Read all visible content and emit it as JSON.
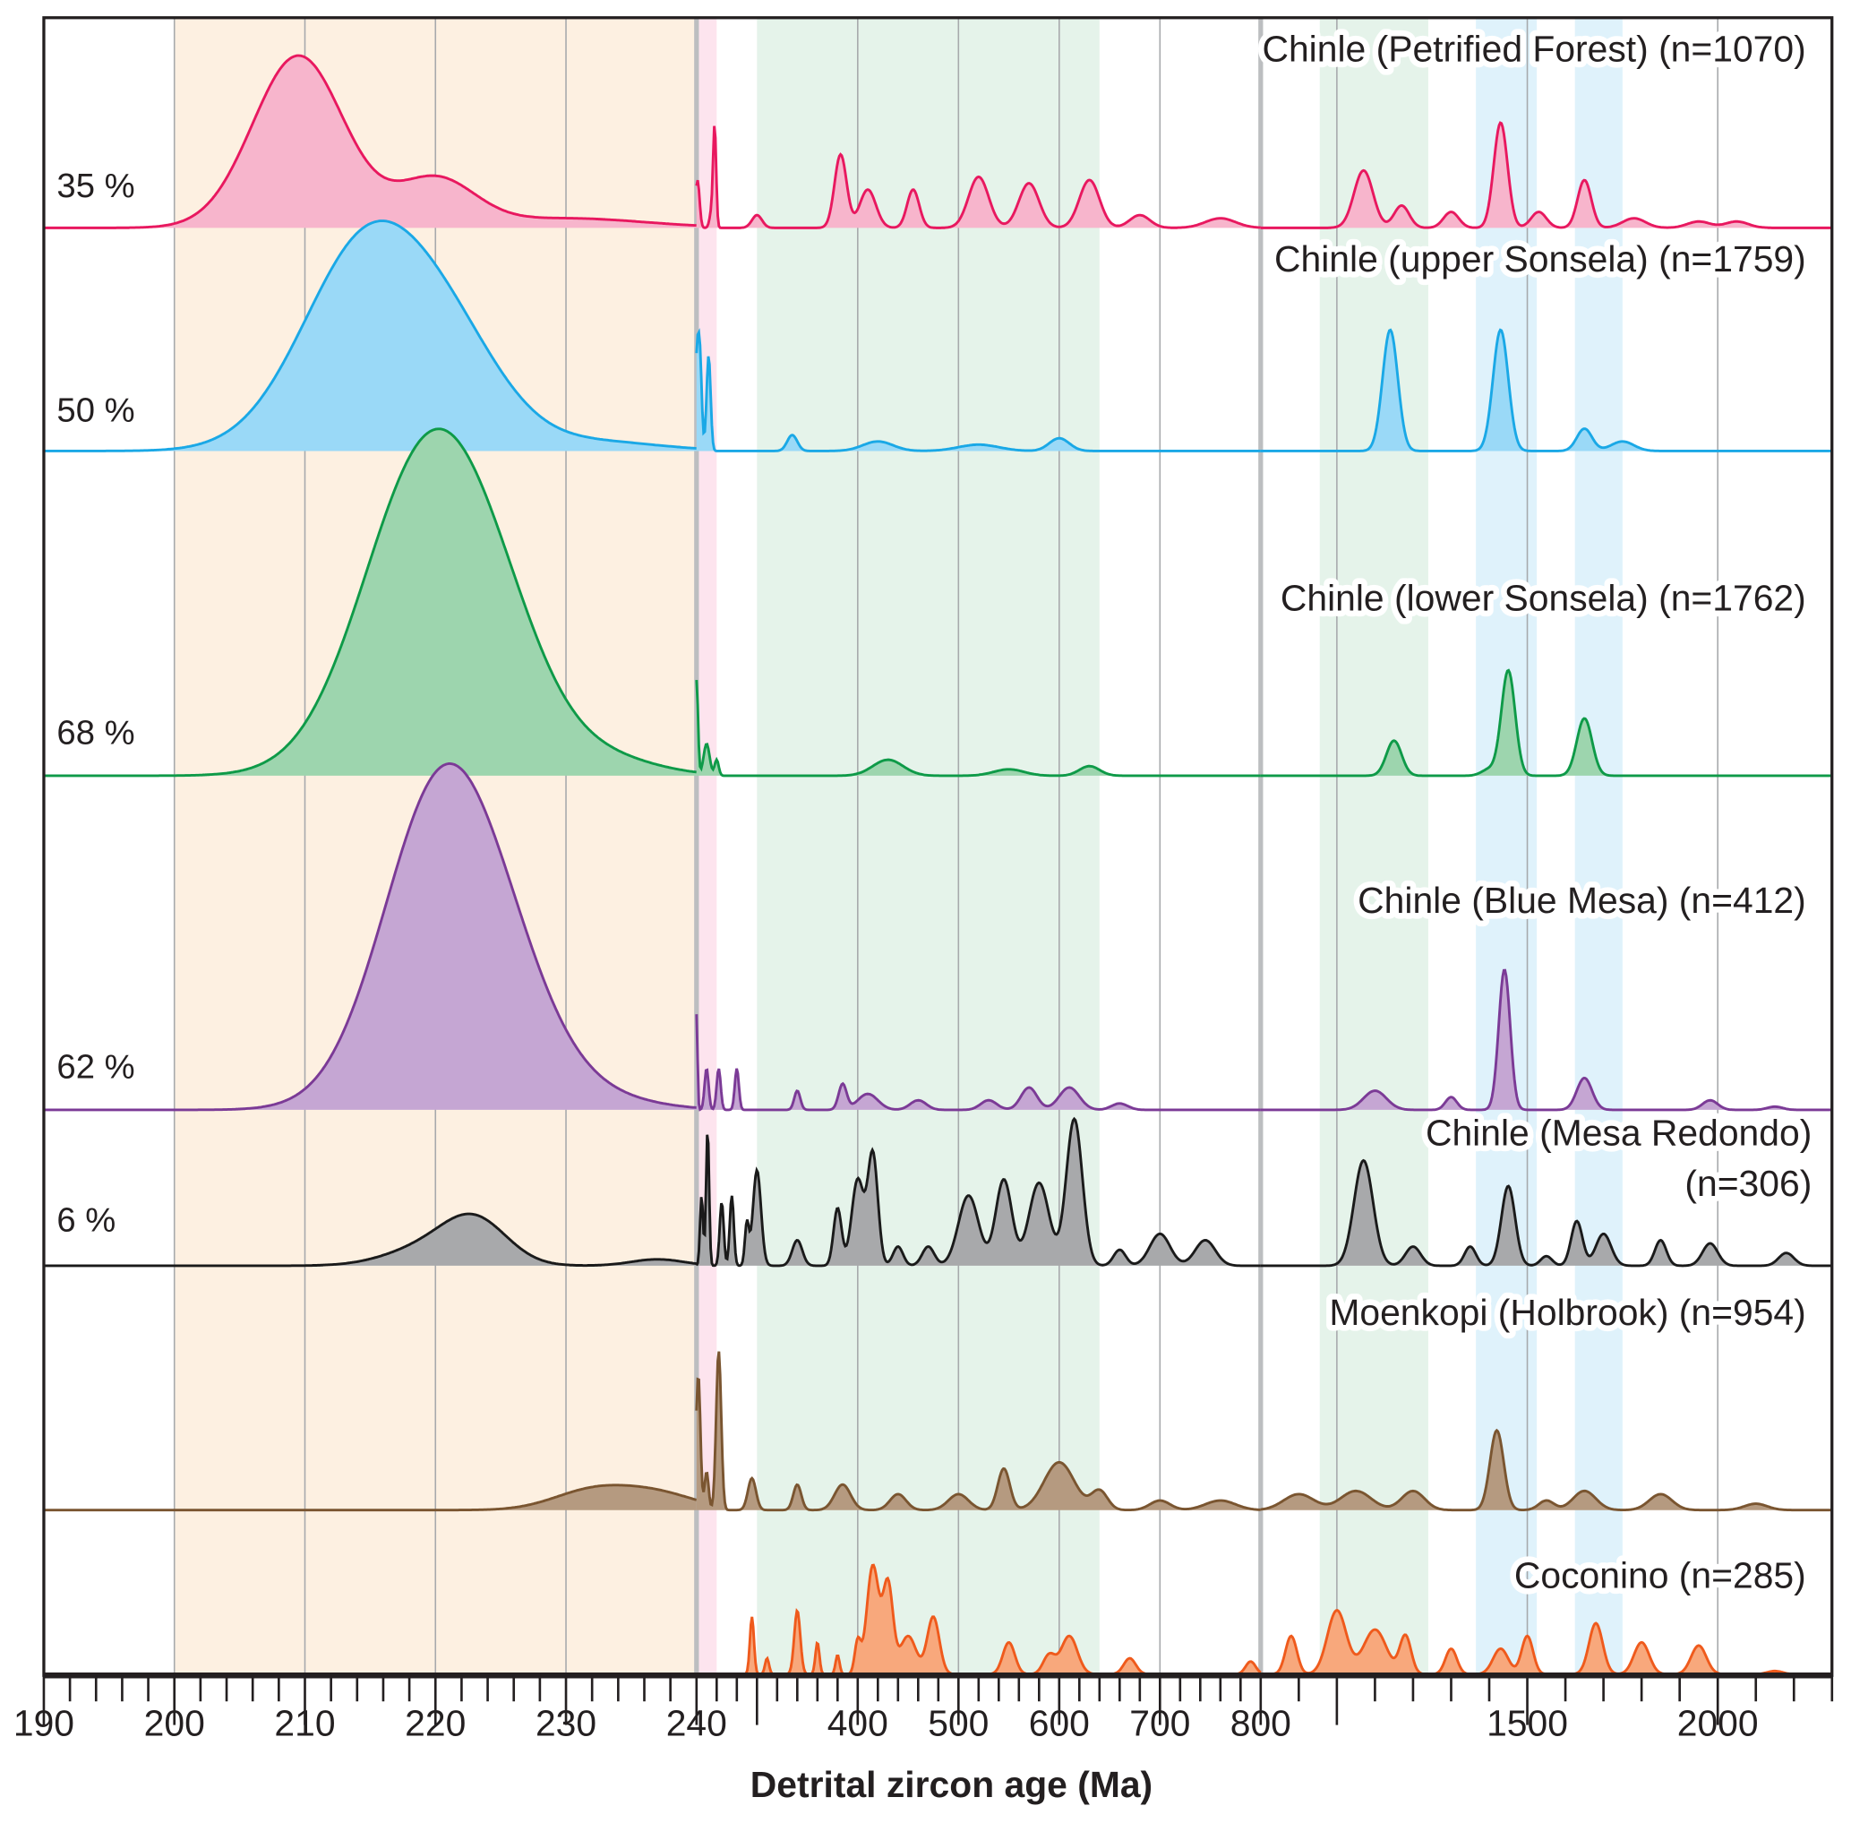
{
  "chart_data": {
    "type": "area",
    "title": "",
    "xlabel": "Detrital zircon age (Ma)",
    "ylabel": "",
    "x_scale": "piecewise linear (190–240, 240–800, 800–2300 Ma)",
    "xlim": [
      190,
      2300
    ],
    "grid": true,
    "tick_labels": [
      "190",
      "200",
      "210",
      "220",
      "230",
      "240",
      "400",
      "500",
      "600",
      "700",
      "800",
      "1500",
      "2000"
    ],
    "tick_values": [
      190,
      200,
      210,
      220,
      230,
      240,
      400,
      500,
      600,
      700,
      800,
      1500,
      2000
    ],
    "gridlines": [
      200,
      210,
      220,
      230,
      400,
      500,
      600,
      700,
      1000,
      1500,
      2000
    ],
    "break_lines": [
      240,
      800
    ],
    "bands": [
      {
        "from": 200,
        "to": 240,
        "color": "#fdf0e1"
      },
      {
        "from": 240,
        "to": 260,
        "color": "#fde4ee"
      },
      {
        "from": 300,
        "to": 640,
        "color": "#e5f3ea"
      },
      {
        "from": 955,
        "to": 1240,
        "color": "#e5f3ea"
      },
      {
        "from": 1365,
        "to": 1525,
        "color": "#dff2fb"
      },
      {
        "from": 1625,
        "to": 1750,
        "color": "#dff2fb"
      }
    ],
    "series": [
      {
        "name": "Chinle (Petrified Forest)",
        "n_label": "(n=1070)",
        "percent": "35 %",
        "stroke": "#e8185f",
        "fill": "#f7b5cc",
        "peaks": [
          [
            209.5,
            0.54,
            3.5
          ],
          [
            220,
            0.15,
            3
          ],
          [
            230,
            0.03,
            6
          ],
          [
            241,
            0.15,
            2
          ],
          [
            258,
            0.31,
            1.5
          ],
          [
            255,
            0.05,
            2
          ],
          [
            300,
            0.04,
            5
          ],
          [
            383,
            0.23,
            6
          ],
          [
            410,
            0.12,
            8
          ],
          [
            455,
            0.12,
            6
          ],
          [
            520,
            0.16,
            10
          ],
          [
            570,
            0.14,
            10
          ],
          [
            630,
            0.15,
            10
          ],
          [
            680,
            0.04,
            10
          ],
          [
            760,
            0.03,
            15
          ],
          [
            1070,
            0.18,
            25
          ],
          [
            1170,
            0.07,
            20
          ],
          [
            1300,
            0.05,
            20
          ],
          [
            1430,
            0.33,
            18
          ],
          [
            1530,
            0.05,
            20
          ],
          [
            1650,
            0.15,
            18
          ],
          [
            1780,
            0.03,
            30
          ],
          [
            1950,
            0.02,
            30
          ],
          [
            2050,
            0.02,
            30
          ]
        ]
      },
      {
        "name": "Chinle (upper Sonsela)",
        "n_label": "(n=1759)",
        "percent": "50 %",
        "stroke": "#1aa8e6",
        "fill": "#9ad9f7",
        "peaks": [
          [
            215,
            0.67,
            5
          ],
          [
            222,
            0.2,
            4
          ],
          [
            232,
            0.03,
            5
          ],
          [
            240,
            0.2,
            1.5
          ],
          [
            243,
            0.33,
            2
          ],
          [
            252,
            0.3,
            2
          ],
          [
            335,
            0.05,
            5
          ],
          [
            420,
            0.03,
            15
          ],
          [
            520,
            0.02,
            20
          ],
          [
            600,
            0.04,
            10
          ],
          [
            1140,
            0.38,
            20
          ],
          [
            1430,
            0.38,
            20
          ],
          [
            1650,
            0.07,
            20
          ],
          [
            1750,
            0.03,
            30
          ]
        ]
      },
      {
        "name": "Chinle (lower Sonsela)",
        "n_label": "(n=1762)",
        "percent": "68 %",
        "stroke": "#0e9a48",
        "fill": "#9dd5ae",
        "peaks": [
          [
            219.5,
            1.0,
            5
          ],
          [
            225,
            0.2,
            4
          ],
          [
            233,
            0.05,
            4
          ],
          [
            240,
            0.3,
            1.5
          ],
          [
            250,
            0.1,
            3
          ],
          [
            260,
            0.05,
            2
          ],
          [
            430,
            0.05,
            15
          ],
          [
            550,
            0.02,
            15
          ],
          [
            630,
            0.03,
            10
          ],
          [
            1150,
            0.11,
            20
          ],
          [
            1400,
            0.02,
            20
          ],
          [
            1450,
            0.33,
            18
          ],
          [
            1650,
            0.18,
            20
          ]
        ]
      },
      {
        "name": "Chinle (Blue Mesa)",
        "n_label": "(n=412)",
        "percent": "62 %",
        "stroke": "#7b3a96",
        "fill": "#c5a6d3",
        "peaks": [
          [
            220.5,
            1.0,
            4.5
          ],
          [
            226,
            0.2,
            4
          ],
          [
            233,
            0.03,
            4
          ],
          [
            240,
            0.3,
            1
          ],
          [
            250,
            0.13,
            2
          ],
          [
            262,
            0.13,
            2
          ],
          [
            280,
            0.13,
            2
          ],
          [
            340,
            0.06,
            3
          ],
          [
            385,
            0.08,
            4
          ],
          [
            410,
            0.05,
            10
          ],
          [
            460,
            0.03,
            8
          ],
          [
            530,
            0.03,
            8
          ],
          [
            570,
            0.07,
            8
          ],
          [
            610,
            0.07,
            10
          ],
          [
            660,
            0.02,
            8
          ],
          [
            1100,
            0.06,
            30
          ],
          [
            1300,
            0.04,
            15
          ],
          [
            1440,
            0.44,
            15
          ],
          [
            1650,
            0.1,
            20
          ],
          [
            1980,
            0.03,
            20
          ],
          [
            2150,
            0.01,
            20
          ]
        ]
      },
      {
        "name": "Chinle (Mesa Redondo)",
        "n_label": "(n=306)",
        "percent": "6 %",
        "stroke": "#1a1a1a",
        "fill": "#a8a9ab",
        "peaks": [
          [
            219,
            0.05,
            3
          ],
          [
            223,
            0.14,
            2.5
          ],
          [
            237,
            0.02,
            2
          ],
          [
            245,
            0.22,
            1.5
          ],
          [
            251,
            0.43,
            1.5
          ],
          [
            265,
            0.2,
            2
          ],
          [
            275,
            0.22,
            2
          ],
          [
            290,
            0.13,
            2
          ],
          [
            300,
            0.3,
            4
          ],
          [
            340,
            0.08,
            5
          ],
          [
            380,
            0.18,
            4
          ],
          [
            400,
            0.27,
            6
          ],
          [
            415,
            0.35,
            5
          ],
          [
            440,
            0.06,
            5
          ],
          [
            470,
            0.06,
            6
          ],
          [
            510,
            0.22,
            10
          ],
          [
            545,
            0.27,
            8
          ],
          [
            580,
            0.26,
            10
          ],
          [
            615,
            0.46,
            8
          ],
          [
            660,
            0.05,
            6
          ],
          [
            700,
            0.1,
            10
          ],
          [
            745,
            0.08,
            10
          ],
          [
            1070,
            0.33,
            25
          ],
          [
            1200,
            0.06,
            20
          ],
          [
            1350,
            0.06,
            15
          ],
          [
            1450,
            0.25,
            18
          ],
          [
            1550,
            0.03,
            15
          ],
          [
            1630,
            0.14,
            15
          ],
          [
            1700,
            0.1,
            20
          ],
          [
            1850,
            0.08,
            15
          ],
          [
            1980,
            0.07,
            20
          ],
          [
            2180,
            0.04,
            20
          ]
        ]
      },
      {
        "name": "Moenkopi (Holbrook)",
        "n_label": "(n=954)",
        "percent": "",
        "stroke": "#7a5530",
        "fill": "#b59a80",
        "peaks": [
          [
            232,
            0.06,
            3
          ],
          [
            237,
            0.05,
            3
          ],
          [
            240,
            0.1,
            2.5
          ],
          [
            242,
            0.35,
            2
          ],
          [
            250,
            0.12,
            2
          ],
          [
            262,
            0.5,
            2.5
          ],
          [
            295,
            0.1,
            4
          ],
          [
            340,
            0.08,
            4
          ],
          [
            385,
            0.08,
            8
          ],
          [
            440,
            0.05,
            8
          ],
          [
            500,
            0.05,
            10
          ],
          [
            545,
            0.13,
            6
          ],
          [
            600,
            0.15,
            15
          ],
          [
            640,
            0.06,
            8
          ],
          [
            700,
            0.03,
            10
          ],
          [
            760,
            0.03,
            15
          ],
          [
            900,
            0.05,
            40
          ],
          [
            1050,
            0.06,
            40
          ],
          [
            1200,
            0.06,
            30
          ],
          [
            1420,
            0.25,
            18
          ],
          [
            1550,
            0.03,
            20
          ],
          [
            1650,
            0.06,
            30
          ],
          [
            1850,
            0.05,
            30
          ],
          [
            2100,
            0.02,
            30
          ]
        ]
      },
      {
        "name": "Coconino",
        "n_label": "(n=285)",
        "percent": "",
        "stroke": "#ef5a1c",
        "fill": "#f8a87c",
        "peaks": [
          [
            295,
            0.18,
            2
          ],
          [
            310,
            0.05,
            2
          ],
          [
            340,
            0.2,
            3
          ],
          [
            360,
            0.1,
            2
          ],
          [
            380,
            0.06,
            2
          ],
          [
            400,
            0.1,
            3
          ],
          [
            415,
            0.34,
            6
          ],
          [
            430,
            0.28,
            5
          ],
          [
            450,
            0.12,
            8
          ],
          [
            475,
            0.18,
            6
          ],
          [
            550,
            0.1,
            6
          ],
          [
            590,
            0.06,
            6
          ],
          [
            610,
            0.12,
            8
          ],
          [
            670,
            0.05,
            6
          ],
          [
            790,
            0.04,
            5
          ],
          [
            880,
            0.12,
            15
          ],
          [
            1000,
            0.2,
            25
          ],
          [
            1100,
            0.14,
            30
          ],
          [
            1180,
            0.12,
            15
          ],
          [
            1300,
            0.08,
            15
          ],
          [
            1430,
            0.08,
            20
          ],
          [
            1500,
            0.12,
            15
          ],
          [
            1680,
            0.16,
            18
          ],
          [
            1800,
            0.1,
            20
          ],
          [
            1950,
            0.09,
            20
          ],
          [
            2150,
            0.01,
            20
          ]
        ]
      }
    ]
  }
}
